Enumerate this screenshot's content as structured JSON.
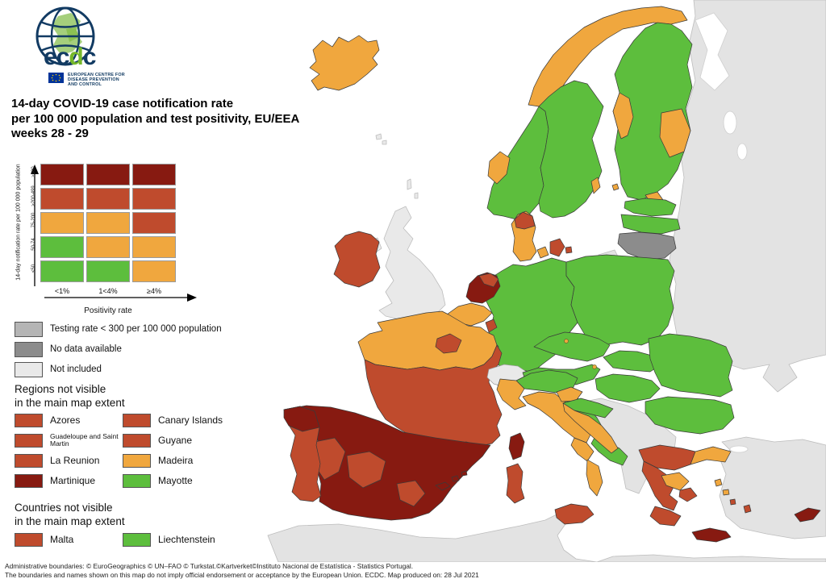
{
  "logo": {
    "org_e1": "e",
    "org_c1": "c",
    "org_d": "d",
    "org_c2": "c",
    "tagline_line1": "EUROPEAN CENTRE FOR",
    "tagline_line2": "DISEASE PREVENTION",
    "tagline_line3": "AND CONTROL"
  },
  "title": {
    "line1": "14-day COVID-19 case notification rate",
    "line2": "per 100 000 population and test positivity, EU/EEA",
    "line3": "weeks 28 - 29"
  },
  "colors": {
    "green": "#5dbe3d",
    "orange": "#f0a73e",
    "red": "#bf4b2d",
    "dark_red": "#871a11",
    "gray_testing": "#b5b5b5",
    "gray_nodata": "#8c8c8c",
    "gray_notincluded": "#e9e9e9",
    "land": "#e3e3e3",
    "sea": "#ffffff",
    "logo_navy": "#123b63",
    "logo_green": "#76b82a",
    "eu_blue": "#003399",
    "star_yellow": "#ffcc00"
  },
  "matrix": {
    "y_axis_label": "14-day notification rate per 100 000 population",
    "x_axis_label": "Positivity rate",
    "row_labels": [
      "≥500",
      ">200-499",
      "75-200",
      "50-74",
      "<50"
    ],
    "col_labels": [
      "<1%",
      "1<4%",
      "≥4%"
    ],
    "cells": [
      [
        "dark_red",
        "dark_red",
        "dark_red"
      ],
      [
        "red",
        "red",
        "red"
      ],
      [
        "orange",
        "orange",
        "red"
      ],
      [
        "green",
        "orange",
        "orange"
      ],
      [
        "green",
        "green",
        "orange"
      ]
    ]
  },
  "gray_legend": [
    {
      "label": "Testing rate < 300 per 100 000 population",
      "color_key": "gray_testing"
    },
    {
      "label": "No data available",
      "color_key": "gray_nodata"
    },
    {
      "label": "Not included",
      "color_key": "gray_notincluded"
    }
  ],
  "regions_section": {
    "heading_line1": "Regions not visible",
    "heading_line2": "in the main map extent",
    "col1": [
      {
        "label": "Azores",
        "color_key": "red"
      },
      {
        "label": "Guadeloupe and Saint Martin",
        "color_key": "red",
        "small": true
      },
      {
        "label": "La Reunion",
        "color_key": "red"
      },
      {
        "label": "Martinique",
        "color_key": "dark_red"
      }
    ],
    "col2": [
      {
        "label": "Canary Islands",
        "color_key": "red"
      },
      {
        "label": "Guyane",
        "color_key": "red"
      },
      {
        "label": "Madeira",
        "color_key": "orange"
      },
      {
        "label": "Mayotte",
        "color_key": "green"
      }
    ]
  },
  "countries_section": {
    "heading_line1": "Countries not visible",
    "heading_line2": "in the main map extent",
    "col1": [
      {
        "label": "Malta",
        "color_key": "red"
      }
    ],
    "col2": [
      {
        "label": "Liechtenstein",
        "color_key": "green"
      }
    ]
  },
  "footer": {
    "line1": "Administrative boundaries: © EuroGeographics © UN–FAO © Turkstat.©Kartverket©Instituto Nacional de Estatística - Statistics Portugal.",
    "line2": "The boundaries and names shown on this map do not imply official endorsement or acceptance by the European Union. ECDC. Map produced on: 28 Jul 2021"
  },
  "map": {
    "regions": {
      "non_eu_east": "land",
      "turkey": "land",
      "balkans": "land",
      "north_africa": "land",
      "uk": "gray_notincluded",
      "northern_ireland": "gray_notincluded",
      "switzerland": "gray_notincluded",
      "shetland": "gray_notincluded",
      "faroe": "gray_notincluded",
      "kaliningrad": "land",
      "iceland": "orange",
      "norway_south": "green",
      "norway_west_coast": "orange",
      "norway_north": "orange",
      "sweden": "green",
      "gotland": "orange",
      "finland": "green",
      "finland_west": "orange",
      "finland_east": "orange",
      "finland_south": "orange",
      "aland": "orange",
      "estonia": "green",
      "latvia": "green",
      "lithuania": "gray_nodata",
      "denmark_jutland": "orange",
      "denmark_north": "red",
      "denmark_funen": "orange",
      "denmark_zealand": "red",
      "bornholm": "red",
      "ireland": "red",
      "germany": "green",
      "poland": "green",
      "czechia": "green",
      "slovakia": "green",
      "austria": "green",
      "hungary": "green",
      "slovenia": "orange",
      "croatia_inland": "green",
      "croatia_coast": "orange",
      "romania": "green",
      "bulgaria": "green",
      "netherlands": "dark_red",
      "netherlands_ne": "red",
      "belgium": "orange",
      "luxembourg": "red",
      "france_north": "orange",
      "france_paris": "red",
      "france_south": "red",
      "corsica": "dark_red",
      "spain": "dark_red",
      "spain_west": "red",
      "spain_center": "red",
      "spain_murcia": "red",
      "balearics": "dark_red",
      "portugal": "red",
      "portugal_north": "dark_red",
      "italy_north": "green",
      "italy_northwest": "orange",
      "italy_center": "orange",
      "italy_adriatic": "green",
      "italy_south_green": "green",
      "campania": "orange",
      "calabria": "orange",
      "sicily": "red",
      "sardinia": "red",
      "greece_north": "red",
      "greece_thrace": "orange",
      "greece_west": "red",
      "greece_central_orange": "orange",
      "attica": "red",
      "peloponnese": "red",
      "crete": "dark_red",
      "rhodes": "red",
      "aegean_1": "orange",
      "aegean_2": "orange",
      "aegean_3": "red",
      "cyprus": "dark_red",
      "prague_dot": "orange",
      "vienna_dot": "orange"
    }
  }
}
